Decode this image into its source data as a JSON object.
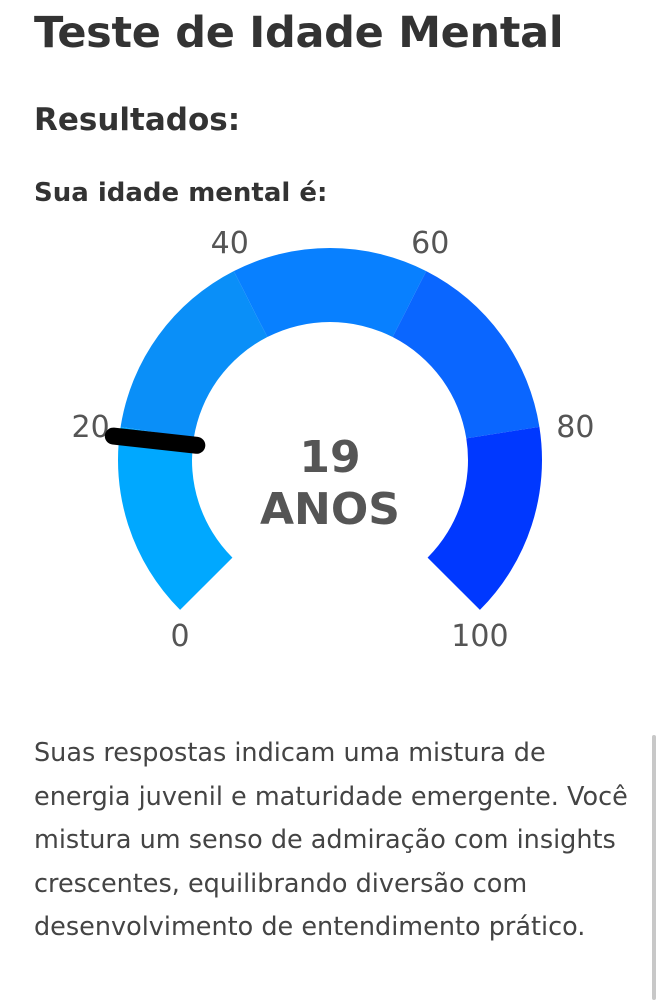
{
  "page": {
    "title": "Teste de Idade Mental",
    "results_heading": "Resultados:",
    "mental_age_label": "Sua idade mental é:",
    "description": "Suas respostas indicam uma mistura de energia juvenil e maturidade emergente. Você mistura um senso de admiração com insights crescentes, equilibrando diversão com desenvolvimento de entendimento prático."
  },
  "gauge": {
    "value": 19,
    "value_text": "19",
    "unit_text": "ANOS",
    "min": 0,
    "max": 100,
    "ticks": [
      {
        "value": 0,
        "label": "0"
      },
      {
        "value": 20,
        "label": "20"
      },
      {
        "value": 40,
        "label": "40"
      },
      {
        "value": 60,
        "label": "60"
      },
      {
        "value": 80,
        "label": "80"
      },
      {
        "value": 100,
        "label": "100"
      }
    ],
    "bands": [
      {
        "from": 0,
        "to": 20,
        "color": "#00a8ff"
      },
      {
        "from": 20,
        "to": 40,
        "color": "#0a8ff8"
      },
      {
        "from": 40,
        "to": 60,
        "color": "#0880ff"
      },
      {
        "from": 60,
        "to": 80,
        "color": "#0a66ff"
      },
      {
        "from": 80,
        "to": 100,
        "color": "#0038ff"
      }
    ],
    "needle_color": "#000000"
  }
}
